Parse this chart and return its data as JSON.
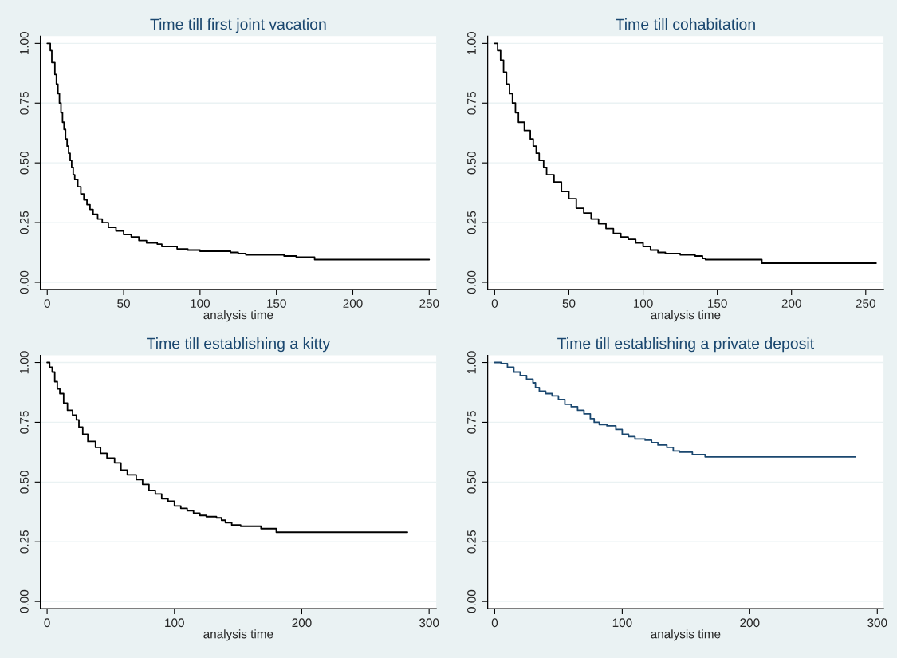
{
  "chart_data": [
    {
      "type": "step",
      "title": "Time till first joint vacation",
      "xlabel": "analysis time",
      "grid": "y",
      "xlim": [
        -4.5,
        254.6
      ],
      "ylim": [
        -0.03,
        1.03
      ],
      "xticks": [
        0,
        50,
        100,
        150,
        200,
        250
      ],
      "yticks": [
        {
          "value": 0,
          "label": "0.00"
        },
        {
          "value": 0.25,
          "label": "0.25"
        },
        {
          "value": 0.5,
          "label": "0.50"
        },
        {
          "value": 0.75,
          "label": "0.75"
        },
        {
          "value": 1,
          "label": "1.00"
        }
      ],
      "series": [
        {
          "color": "#000000",
          "x": [
            0,
            2,
            3,
            5,
            6,
            7,
            8,
            9,
            10,
            11,
            12,
            13,
            14,
            15,
            16,
            17,
            18,
            20,
            22,
            24,
            26,
            28,
            30,
            33,
            36,
            40,
            45,
            50,
            55,
            60,
            65,
            72,
            75,
            85,
            92,
            100,
            120,
            125,
            130,
            155,
            163,
            175,
            250
          ],
          "values": [
            1.0,
            0.97,
            0.92,
            0.87,
            0.83,
            0.79,
            0.75,
            0.71,
            0.67,
            0.64,
            0.6,
            0.57,
            0.54,
            0.51,
            0.48,
            0.45,
            0.43,
            0.4,
            0.37,
            0.345,
            0.325,
            0.305,
            0.285,
            0.265,
            0.25,
            0.23,
            0.215,
            0.2,
            0.19,
            0.175,
            0.165,
            0.16,
            0.15,
            0.14,
            0.135,
            0.13,
            0.125,
            0.12,
            0.115,
            0.11,
            0.105,
            0.095,
            0.095
          ]
        }
      ]
    },
    {
      "type": "step",
      "title": "Time till cohabitation",
      "xlabel": "analysis time",
      "grid": "y",
      "xlim": [
        -4.7,
        262
      ],
      "ylim": [
        -0.03,
        1.03
      ],
      "xticks": [
        0,
        50,
        100,
        150,
        200,
        250
      ],
      "yticks": [
        {
          "value": 0,
          "label": "0.00"
        },
        {
          "value": 0.25,
          "label": "0.25"
        },
        {
          "value": 0.5,
          "label": "0.50"
        },
        {
          "value": 0.75,
          "label": "0.75"
        },
        {
          "value": 1,
          "label": "1.00"
        }
      ],
      "series": [
        {
          "color": "#000000",
          "x": [
            0,
            2,
            4,
            6,
            8,
            10,
            12,
            14,
            16,
            20,
            24,
            26,
            28,
            30,
            33,
            35,
            40,
            45,
            50,
            55,
            60,
            65,
            70,
            75,
            80,
            85,
            90,
            95,
            100,
            105,
            110,
            115,
            125,
            135,
            140,
            142,
            180,
            257
          ],
          "values": [
            1.0,
            0.97,
            0.93,
            0.88,
            0.83,
            0.79,
            0.75,
            0.71,
            0.67,
            0.635,
            0.6,
            0.57,
            0.54,
            0.51,
            0.48,
            0.45,
            0.42,
            0.38,
            0.35,
            0.31,
            0.29,
            0.265,
            0.245,
            0.225,
            0.205,
            0.19,
            0.18,
            0.165,
            0.15,
            0.135,
            0.125,
            0.12,
            0.115,
            0.11,
            0.1,
            0.095,
            0.08,
            0.08
          ]
        }
      ]
    },
    {
      "type": "step",
      "title": "Time till establishing a kitty",
      "xlabel": "analysis time",
      "grid": "y",
      "xlim": [
        -5.3,
        305.6
      ],
      "ylim": [
        -0.03,
        1.03
      ],
      "xticks": [
        0,
        100,
        200,
        300
      ],
      "yticks": [
        {
          "value": 0,
          "label": "0.00"
        },
        {
          "value": 0.25,
          "label": "0.25"
        },
        {
          "value": 0.5,
          "label": "0.50"
        },
        {
          "value": 0.75,
          "label": "0.75"
        },
        {
          "value": 1,
          "label": "1.00"
        }
      ],
      "series": [
        {
          "color": "#000000",
          "x": [
            0,
            2,
            4,
            6,
            8,
            10,
            13,
            16,
            20,
            23,
            25,
            28,
            32,
            38,
            42,
            47,
            53,
            58,
            63,
            70,
            75,
            80,
            85,
            90,
            95,
            100,
            105,
            110,
            115,
            120,
            125,
            133,
            137,
            140,
            145,
            152,
            168,
            180,
            283
          ],
          "values": [
            1.0,
            0.98,
            0.96,
            0.92,
            0.89,
            0.87,
            0.83,
            0.8,
            0.78,
            0.76,
            0.73,
            0.7,
            0.67,
            0.645,
            0.62,
            0.6,
            0.58,
            0.55,
            0.53,
            0.51,
            0.49,
            0.465,
            0.45,
            0.43,
            0.42,
            0.4,
            0.39,
            0.38,
            0.37,
            0.36,
            0.355,
            0.35,
            0.34,
            0.33,
            0.32,
            0.315,
            0.305,
            0.29,
            0.29
          ]
        }
      ]
    },
    {
      "type": "step",
      "title": "Time till establishing a private deposit",
      "xlabel": "analysis time",
      "grid": "y",
      "xlim": [
        -5.5,
        304.9
      ],
      "ylim": [
        -0.03,
        1.03
      ],
      "xticks": [
        0,
        100,
        200,
        300
      ],
      "yticks": [
        {
          "value": 0,
          "label": "0.00"
        },
        {
          "value": 0.25,
          "label": "0.25"
        },
        {
          "value": 0.5,
          "label": "0.50"
        },
        {
          "value": 0.75,
          "label": "0.75"
        },
        {
          "value": 1,
          "label": "1.00"
        }
      ],
      "series": [
        {
          "color": "#1a476f",
          "x": [
            0,
            5,
            10,
            15,
            20,
            25,
            30,
            32,
            35,
            40,
            45,
            50,
            55,
            60,
            65,
            70,
            75,
            78,
            82,
            88,
            95,
            100,
            105,
            110,
            118,
            123,
            128,
            135,
            140,
            145,
            155,
            165,
            283
          ],
          "values": [
            1.0,
            0.995,
            0.98,
            0.96,
            0.945,
            0.93,
            0.915,
            0.895,
            0.88,
            0.87,
            0.86,
            0.845,
            0.825,
            0.815,
            0.8,
            0.785,
            0.765,
            0.75,
            0.74,
            0.735,
            0.72,
            0.7,
            0.69,
            0.68,
            0.675,
            0.665,
            0.655,
            0.645,
            0.63,
            0.625,
            0.615,
            0.605,
            0.605
          ]
        }
      ]
    }
  ]
}
